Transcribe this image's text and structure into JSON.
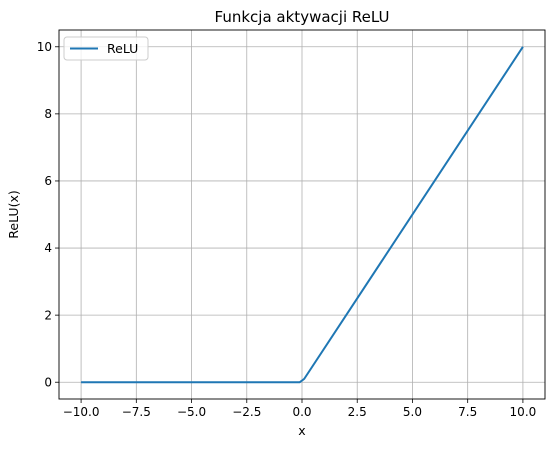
{
  "chart_data": {
    "type": "line",
    "title": "Funkcja aktywacji ReLU",
    "xlabel": "x",
    "ylabel": "ReLU(x)",
    "xlim": [
      -11,
      11
    ],
    "ylim": [
      -0.5,
      10.5
    ],
    "xticks": [
      -10.0,
      -7.5,
      -5.0,
      -2.5,
      0.0,
      2.5,
      5.0,
      7.5,
      10.0
    ],
    "xtick_labels": [
      "−10.0",
      "−7.5",
      "−5.0",
      "−2.5",
      "0.0",
      "2.5",
      "5.0",
      "7.5",
      "10.0"
    ],
    "yticks": [
      0,
      2,
      4,
      6,
      8,
      10
    ],
    "ytick_labels": [
      "0",
      "2",
      "4",
      "6",
      "8",
      "10"
    ],
    "grid": true,
    "legend_position": "top-left",
    "series": [
      {
        "name": "ReLU",
        "color": "#1f77b4",
        "x": [
          -10,
          -0.1,
          0.1,
          10
        ],
        "y": [
          0,
          0,
          0.1,
          10
        ]
      }
    ]
  }
}
